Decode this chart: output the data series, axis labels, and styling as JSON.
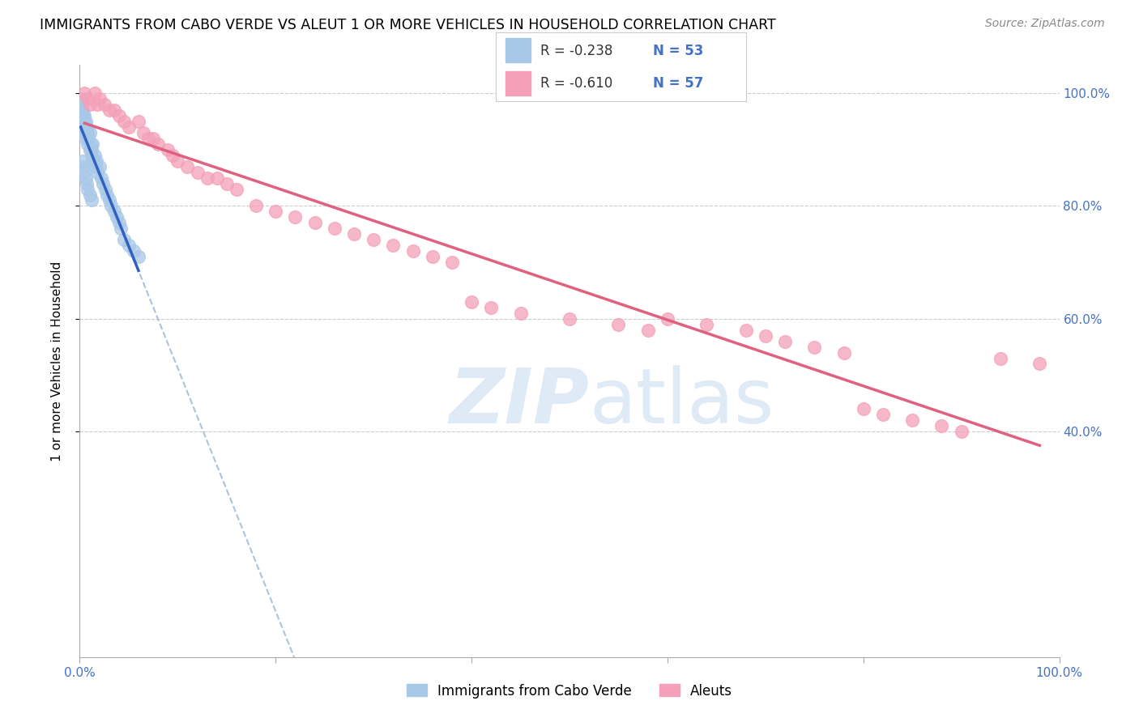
{
  "title": "IMMIGRANTS FROM CABO VERDE VS ALEUT 1 OR MORE VEHICLES IN HOUSEHOLD CORRELATION CHART",
  "source": "Source: ZipAtlas.com",
  "ylabel": "1 or more Vehicles in Household",
  "legend_label1": "Immigrants from Cabo Verde",
  "legend_label2": "Aleuts",
  "r1": "-0.238",
  "n1": "53",
  "r2": "-0.610",
  "n2": "57",
  "color_blue": "#A8C8E8",
  "color_pink": "#F4A0B8",
  "trendline_blue": "#3060C0",
  "trendline_pink": "#E06080",
  "trendline_dashed_color": "#A0B8D8",
  "watermark_color": "#C8DCF0",
  "cabo_verde_x": [
    0.001,
    0.002,
    0.002,
    0.003,
    0.003,
    0.003,
    0.004,
    0.004,
    0.005,
    0.005,
    0.005,
    0.006,
    0.006,
    0.006,
    0.007,
    0.007,
    0.008,
    0.008,
    0.009,
    0.01,
    0.01,
    0.011,
    0.012,
    0.012,
    0.013,
    0.014,
    0.015,
    0.016,
    0.017,
    0.018,
    0.02,
    0.022,
    0.024,
    0.026,
    0.028,
    0.03,
    0.032,
    0.035,
    0.038,
    0.04,
    0.042,
    0.045,
    0.05,
    0.055,
    0.06,
    0.003,
    0.004,
    0.005,
    0.006,
    0.007,
    0.008,
    0.01,
    0.012
  ],
  "cabo_verde_y": [
    0.99,
    0.98,
    0.97,
    0.97,
    0.96,
    0.95,
    0.96,
    0.94,
    0.96,
    0.95,
    0.93,
    0.95,
    0.94,
    0.92,
    0.94,
    0.93,
    0.93,
    0.91,
    0.92,
    0.93,
    0.9,
    0.91,
    0.9,
    0.89,
    0.91,
    0.88,
    0.89,
    0.87,
    0.88,
    0.86,
    0.87,
    0.85,
    0.84,
    0.83,
    0.82,
    0.81,
    0.8,
    0.79,
    0.78,
    0.77,
    0.76,
    0.74,
    0.73,
    0.72,
    0.71,
    0.88,
    0.87,
    0.86,
    0.85,
    0.84,
    0.83,
    0.82,
    0.81
  ],
  "aleuts_x": [
    0.005,
    0.008,
    0.01,
    0.015,
    0.018,
    0.02,
    0.025,
    0.03,
    0.035,
    0.04,
    0.045,
    0.05,
    0.06,
    0.065,
    0.07,
    0.075,
    0.08,
    0.09,
    0.095,
    0.1,
    0.11,
    0.12,
    0.13,
    0.14,
    0.15,
    0.16,
    0.18,
    0.2,
    0.22,
    0.24,
    0.26,
    0.28,
    0.3,
    0.32,
    0.34,
    0.36,
    0.38,
    0.4,
    0.42,
    0.45,
    0.5,
    0.55,
    0.58,
    0.6,
    0.64,
    0.68,
    0.7,
    0.72,
    0.75,
    0.78,
    0.8,
    0.82,
    0.85,
    0.88,
    0.9,
    0.94,
    0.98
  ],
  "aleuts_y": [
    1.0,
    0.99,
    0.98,
    1.0,
    0.98,
    0.99,
    0.98,
    0.97,
    0.97,
    0.96,
    0.95,
    0.94,
    0.95,
    0.93,
    0.92,
    0.92,
    0.91,
    0.9,
    0.89,
    0.88,
    0.87,
    0.86,
    0.85,
    0.85,
    0.84,
    0.83,
    0.8,
    0.79,
    0.78,
    0.77,
    0.76,
    0.75,
    0.74,
    0.73,
    0.72,
    0.71,
    0.7,
    0.63,
    0.62,
    0.61,
    0.6,
    0.59,
    0.58,
    0.6,
    0.59,
    0.58,
    0.57,
    0.56,
    0.55,
    0.54,
    0.44,
    0.43,
    0.42,
    0.41,
    0.4,
    0.53,
    0.52
  ],
  "xlim": [
    0.0,
    1.0
  ],
  "ylim": [
    0.0,
    1.05
  ],
  "yticks": [
    0.4,
    0.6,
    0.8,
    1.0
  ],
  "ytick_labels": [
    "40.0%",
    "60.0%",
    "80.0%",
    "100.0%"
  ],
  "xticks": [
    0.0,
    0.2,
    0.4,
    0.6,
    0.8,
    1.0
  ],
  "xtick_labels": [
    "0.0%",
    "",
    "",
    "",
    "",
    "100.0%"
  ]
}
